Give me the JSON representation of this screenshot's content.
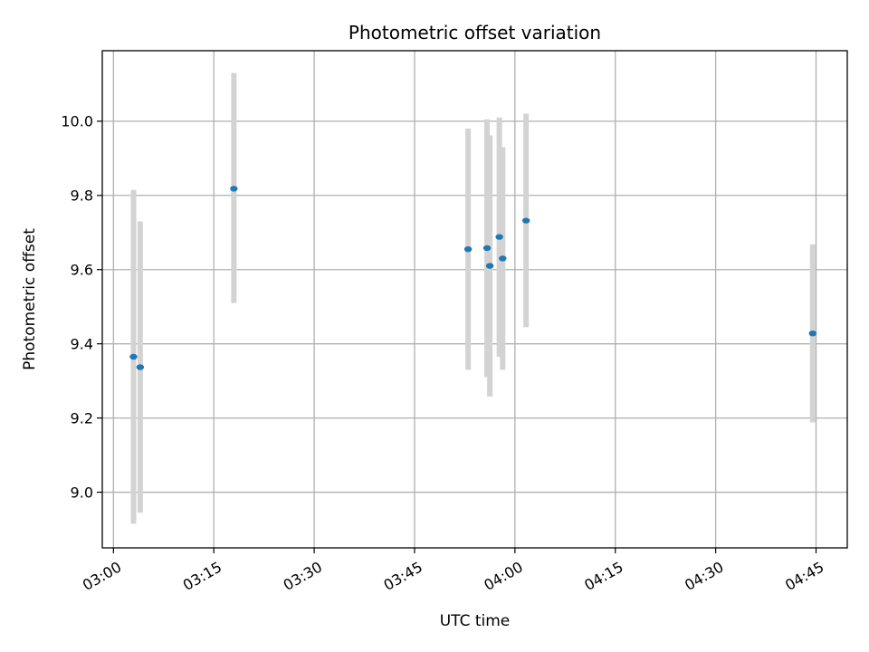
{
  "chart_data": {
    "type": "scatter",
    "title": "Photometric offset variation",
    "xlabel": "UTC time",
    "ylabel": "Photometric offset",
    "xlim": [
      "02:58:20",
      "04:49:40"
    ],
    "ylim": [
      8.85,
      10.19
    ],
    "x_ticks": [
      "03:00",
      "03:15",
      "03:30",
      "03:45",
      "04:00",
      "04:15",
      "04:30",
      "04:45"
    ],
    "y_ticks": [
      "9.0",
      "9.2",
      "9.4",
      "9.6",
      "9.8",
      "10.0"
    ],
    "grid": true,
    "colors": {
      "point": "#1f77b4",
      "errorbar": "#d3d3d3",
      "grid": "#b0b0b0"
    },
    "points": [
      {
        "time": "03:03:00",
        "value": 9.365,
        "lower": 8.915,
        "upper": 9.815
      },
      {
        "time": "03:04:00",
        "value": 9.337,
        "lower": 8.945,
        "upper": 9.73
      },
      {
        "time": "03:18:00",
        "value": 9.818,
        "lower": 9.51,
        "upper": 10.13
      },
      {
        "time": "03:53:00",
        "value": 9.655,
        "lower": 9.33,
        "upper": 9.98
      },
      {
        "time": "03:55:50",
        "value": 9.658,
        "lower": 9.31,
        "upper": 10.005
      },
      {
        "time": "03:56:15",
        "value": 9.61,
        "lower": 9.258,
        "upper": 9.962
      },
      {
        "time": "03:57:40",
        "value": 9.688,
        "lower": 9.365,
        "upper": 10.01
      },
      {
        "time": "03:58:10",
        "value": 9.63,
        "lower": 9.33,
        "upper": 9.93
      },
      {
        "time": "04:01:40",
        "value": 9.732,
        "lower": 9.445,
        "upper": 10.02
      },
      {
        "time": "04:44:30",
        "value": 9.428,
        "lower": 9.188,
        "upper": 9.668
      }
    ]
  }
}
